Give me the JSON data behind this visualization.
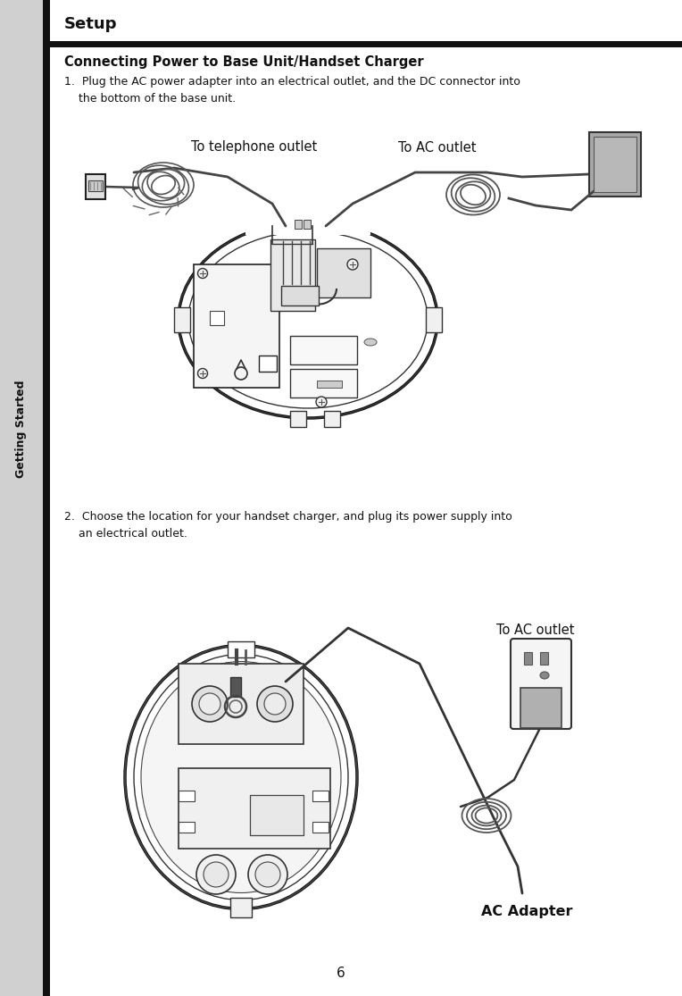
{
  "bg_color": "#e8e8e8",
  "main_bg": "#ffffff",
  "sidebar_bg": "#d0d0d0",
  "sidebar_border": "#111111",
  "tab_text": "Getting Started",
  "title": "Setup",
  "title_fontsize": 13,
  "section_title": "Connecting Power to Base Unit/Handset Charger",
  "section_title_fontsize": 10.5,
  "step1_text": "1.  Plug the AC power adapter into an electrical outlet, and the DC connector into\n    the bottom of the base unit.",
  "step2_text": "2.  Choose the location for your handset charger, and plug its power supply into\n    an electrical outlet.",
  "label_telephone": "To telephone outlet",
  "label_ac_outlet1": "To AC outlet",
  "label_ac_outlet2": "To AC outlet",
  "label_ac_adapter": "AC Adapter",
  "page_number": "6",
  "text_color": "#111111",
  "body_fontsize": 9.0,
  "label_fontsize": 10.5
}
